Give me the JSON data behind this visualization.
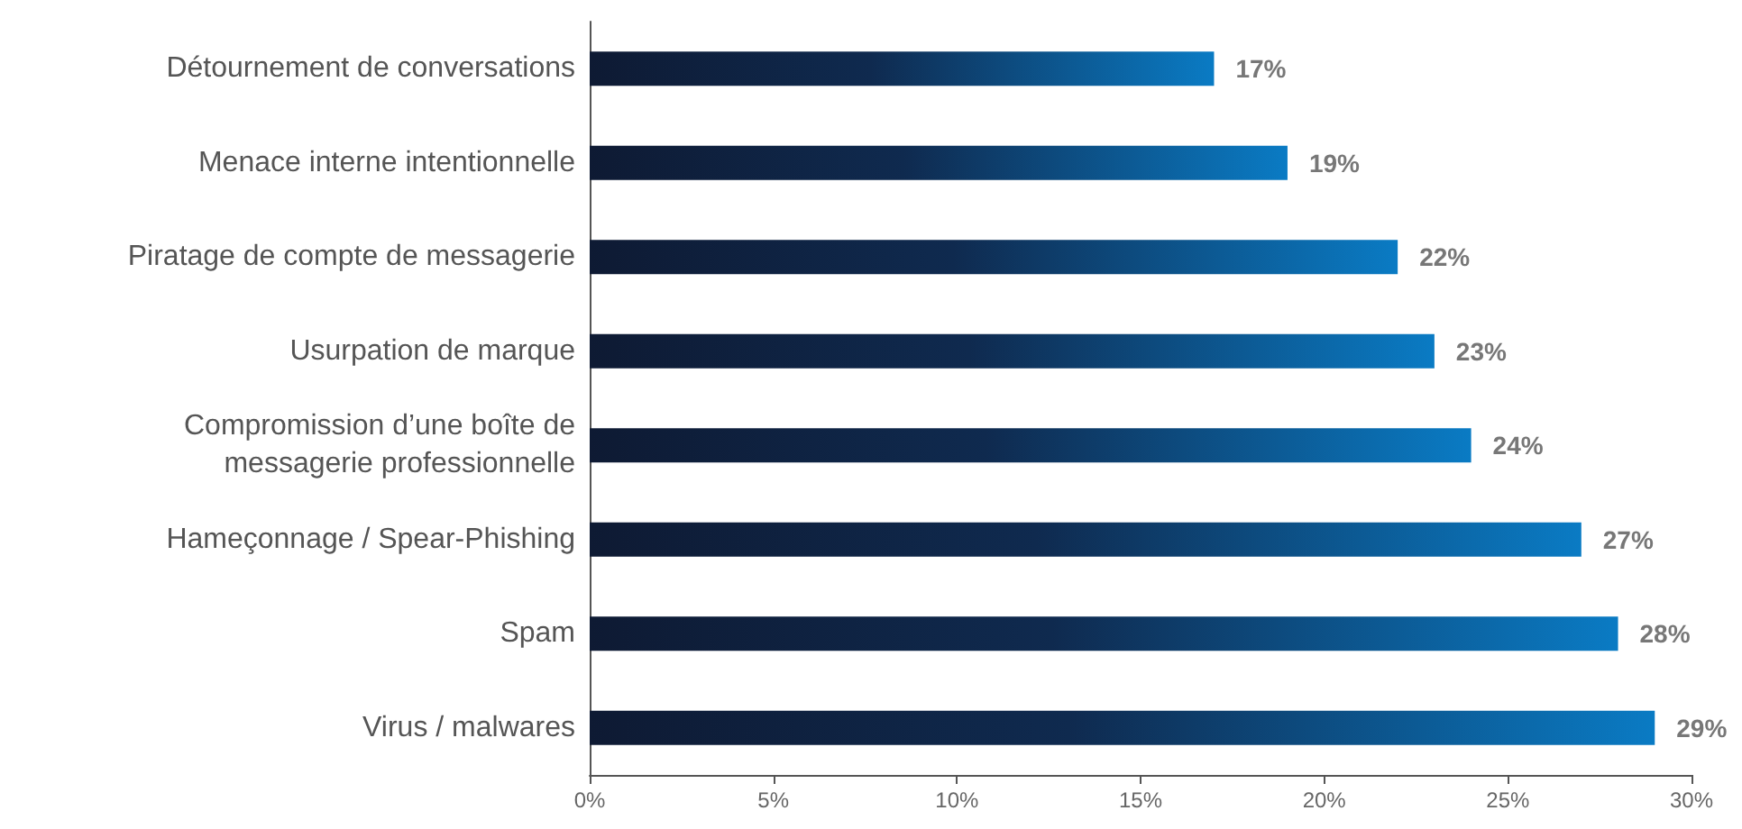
{
  "chart_data": {
    "type": "bar",
    "orientation": "horizontal",
    "categories": [
      "Détournement de conversations",
      "Menace interne intentionnelle",
      "Piratage de compte de messagerie",
      "Usurpation de marque",
      "Compromission d’une boîte de\nmessagerie professionnelle",
      "Hameçonnage / Spear-Phishing",
      "Spam",
      "Virus / malwares"
    ],
    "values": [
      17,
      19,
      22,
      23,
      24,
      27,
      28,
      29
    ],
    "value_labels": [
      "17%",
      "19%",
      "22%",
      "23%",
      "24%",
      "27%",
      "28%",
      "29%"
    ],
    "color": "#0a7bc4",
    "xlim": [
      0,
      30
    ],
    "xticks": [
      {
        "value": 0,
        "label": "0%"
      },
      {
        "value": 5,
        "label": "5%"
      },
      {
        "value": 10,
        "label": "10%"
      },
      {
        "value": 15,
        "label": "15%"
      },
      {
        "value": 20,
        "label": "20%"
      },
      {
        "value": 25,
        "label": "25%"
      },
      {
        "value": 30,
        "label": "30%"
      }
    ],
    "grid": false
  }
}
